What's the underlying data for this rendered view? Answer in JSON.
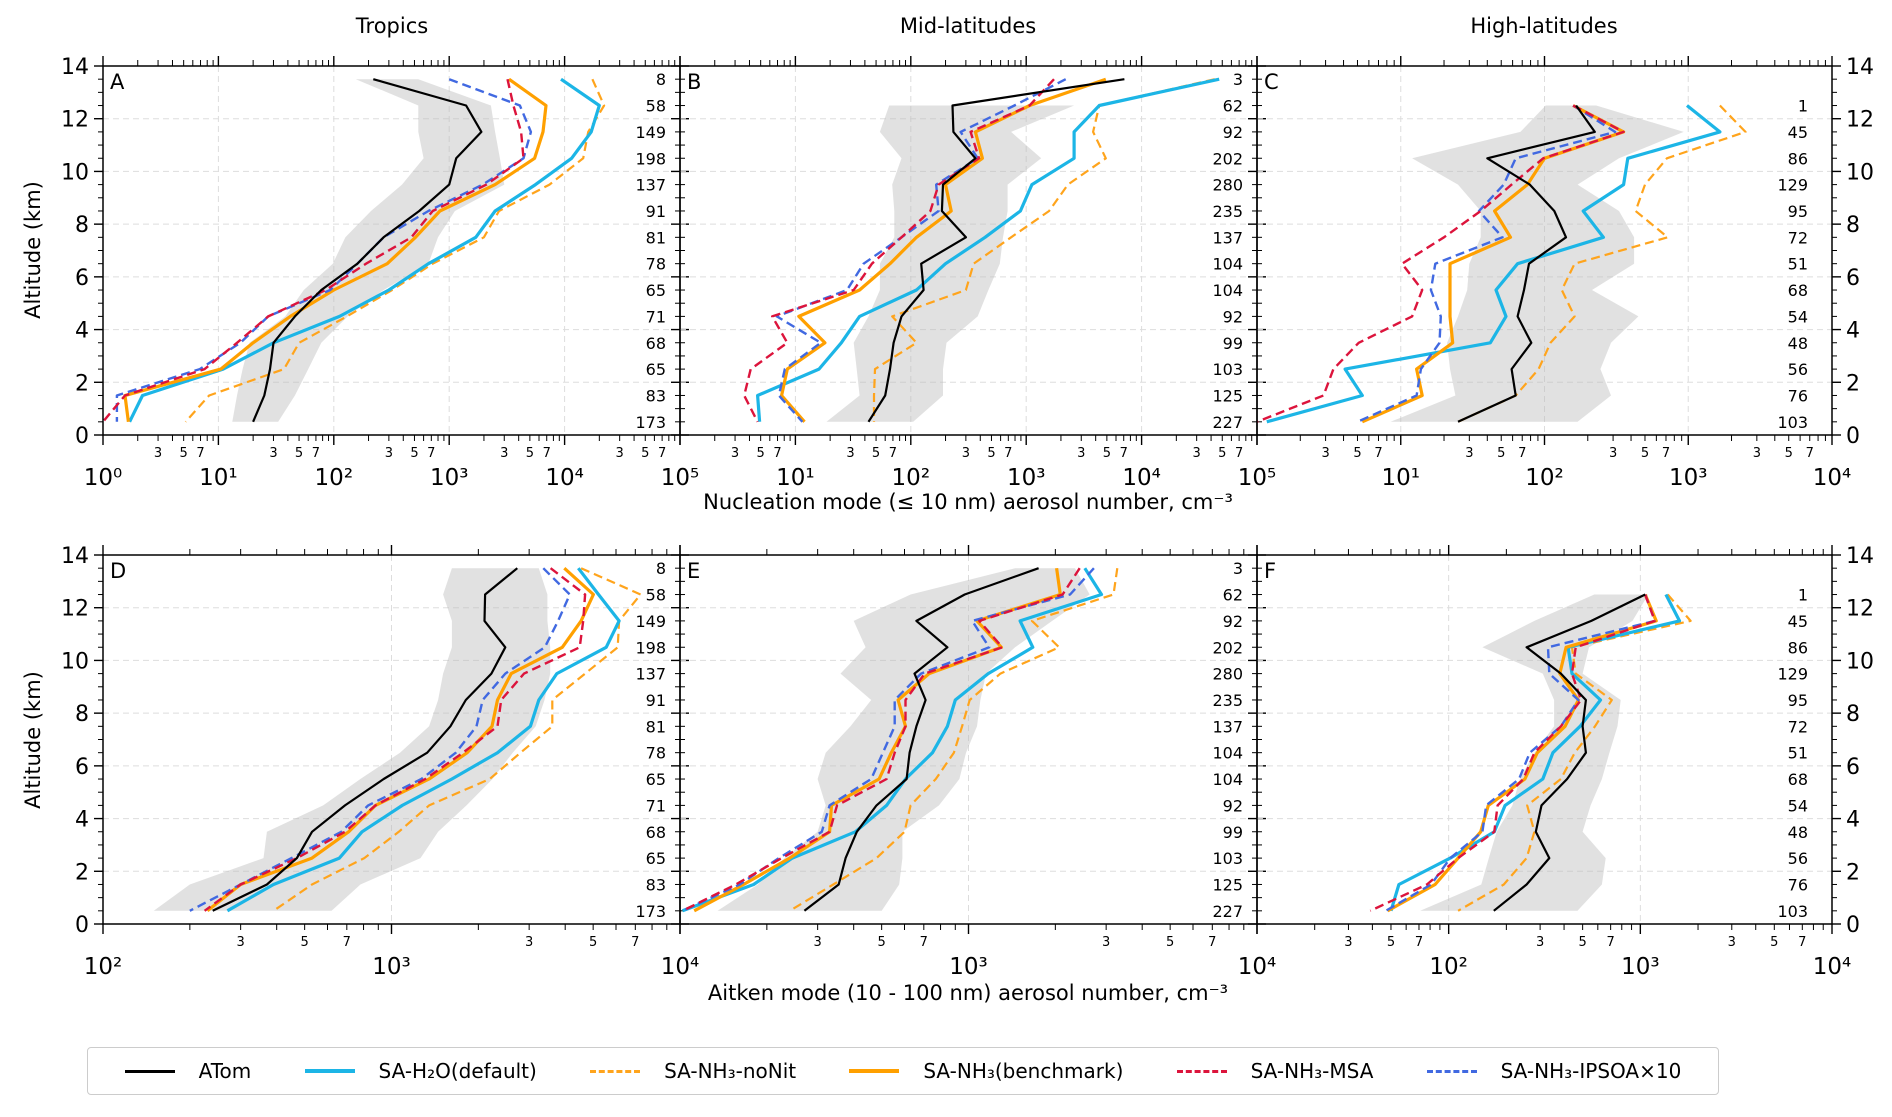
{
  "columns": [
    "Tropics",
    "Mid-latitudes",
    "High-latitudes"
  ],
  "xlabel_top": "Nucleation mode (≤ 10 nm) aerosol number, cm⁻³",
  "xlabel_bottom": "Aitken mode (10 - 100 nm) aerosol number, cm⁻³",
  "ylabel": "Altitude (km)",
  "legend": [
    {
      "key": "atom",
      "label": "ATom",
      "color": "#000000",
      "dash": "solid"
    },
    {
      "key": "h2o",
      "label": "SA-H₂O(default)",
      "color": "#1cb5e6",
      "dash": "solid"
    },
    {
      "key": "nonit",
      "label": "SA-NH₃-noNit",
      "color": "#ffa41c",
      "dash": "dashed"
    },
    {
      "key": "bench",
      "label": "SA-NH₃(benchmark)",
      "color": "#ffa000",
      "dash": "solid"
    },
    {
      "key": "msa",
      "label": "SA-NH₃-MSA",
      "color": "#dc143c",
      "dash": "dashed"
    },
    {
      "key": "ipsoa",
      "label": "SA-NH₃-IPSOA×10",
      "color": "#4169e1",
      "dash": "dashed"
    }
  ],
  "chart_data": [
    {
      "type": "line",
      "panel": "A",
      "column": "Tropics",
      "xscale": "log",
      "xlim": [
        1,
        100000
      ],
      "ylim": [
        0,
        14
      ],
      "ylabel": "Altitude (km)",
      "yticks": [
        0,
        2,
        4,
        6,
        8,
        10,
        12,
        14
      ],
      "grid": true,
      "legend_position": "bottom",
      "altitude": [
        13.5,
        12.5,
        11.5,
        10.5,
        9.5,
        8.5,
        7.5,
        6.5,
        5.5,
        4.5,
        3.5,
        2.5,
        1.5,
        0.5
      ],
      "counts": [
        8,
        58,
        149,
        198,
        137,
        91,
        81,
        78,
        65,
        71,
        68,
        65,
        83,
        173
      ],
      "series": {
        "atom": [
          220,
          1400,
          1900,
          1150,
          1000,
          550,
          270,
          160,
          78,
          46,
          30,
          28,
          25,
          20
        ],
        "h2o": [
          9300,
          20000,
          17000,
          11500,
          5600,
          2500,
          1700,
          660,
          300,
          112,
          30,
          11,
          2.2,
          1.7
        ],
        "nonit": [
          17400,
          22000,
          16000,
          14500,
          7400,
          2700,
          2000,
          720,
          320,
          130,
          50,
          37,
          8.3,
          5.2
        ],
        "bench": [
          3300,
          6900,
          6500,
          5500,
          2500,
          830,
          510,
          290,
          100,
          42,
          20,
          10.5,
          1.55,
          1.66
        ],
        "msa": [
          3200,
          3600,
          4200,
          4400,
          2100,
          720,
          470,
          190,
          85,
          27,
          14.5,
          7.6,
          1.55,
          1.0
        ],
        "ipsoa": [
          1000,
          4100,
          5100,
          4400,
          1950,
          660,
          270,
          160,
          93,
          27,
          15.5,
          6.9,
          1.32,
          1.32
        ]
      },
      "atom_range": [
        [
          155,
          540
        ],
        [
          540,
          2300
        ],
        [
          540,
          2500
        ],
        [
          600,
          2750
        ],
        [
          390,
          3000
        ],
        [
          210,
          1120
        ],
        [
          126,
          800
        ],
        [
          98,
          660
        ],
        [
          55,
          270
        ],
        [
          38,
          132
        ],
        [
          18.6,
          78
        ],
        [
          16.2,
          60
        ],
        [
          14.5,
          46
        ],
        [
          13.2,
          33
        ]
      ]
    },
    {
      "type": "line",
      "panel": "B",
      "column": "Mid-latitudes",
      "xscale": "log",
      "xlim": [
        1,
        100000
      ],
      "ylim": [
        0,
        14
      ],
      "grid": true,
      "altitude": [
        13.5,
        12.5,
        11.5,
        10.5,
        9.5,
        8.5,
        7.5,
        6.5,
        5.5,
        4.5,
        3.5,
        2.5,
        1.5,
        0.5
      ],
      "counts": [
        3,
        62,
        92,
        202,
        280,
        235,
        137,
        104,
        104,
        92,
        99,
        103,
        125,
        227
      ],
      "series": {
        "atom": [
          7100,
          230,
          234,
          363,
          190,
          186,
          300,
          123,
          129,
          83,
          71,
          66,
          60,
          43
        ],
        "h2o": [
          47000,
          4300,
          2600,
          2600,
          1120,
          890,
          440,
          200,
          112,
          36,
          25,
          16,
          4.7,
          4.9
        ],
        "nonit": [
          43000,
          4300,
          3800,
          4900,
          2300,
          1580,
          740,
          350,
          300,
          69,
          112,
          49,
          48,
          48
        ],
        "bench": [
          4900,
          1070,
          363,
          417,
          200,
          224,
          112,
          66,
          36,
          10.7,
          18,
          8.5,
          7.6,
          12
        ],
        "msa": [
          1740,
          1070,
          330,
          390,
          174,
          148,
          83,
          46,
          32,
          6.3,
          8.5,
          4.1,
          3.6,
          4.7
        ],
        "ipsoa": [
          2200,
          790,
          270,
          380,
          166,
          174,
          83,
          39,
          28,
          6.9,
          16.6,
          8.1,
          7.2,
          11.5
        ]
      },
      "atom_range": [
        null,
        [
          65,
          2600
        ],
        [
          54,
          740
        ],
        [
          83,
          1350
        ],
        [
          69,
          690
        ],
        [
          72,
          690
        ],
        [
          72,
          630
        ],
        [
          54,
          590
        ],
        [
          54,
          470
        ],
        [
          43,
          380
        ],
        [
          32,
          204
        ],
        [
          34,
          190
        ],
        [
          36,
          190
        ],
        [
          18.6,
          105
        ]
      ]
    },
    {
      "type": "line",
      "panel": "C",
      "column": "High-latitudes",
      "xscale": "log",
      "xlim": [
        1,
        10000
      ],
      "ylim": [
        0,
        14
      ],
      "grid": true,
      "altitude": [
        13.5,
        12.5,
        11.5,
        10.5,
        9.5,
        8.5,
        7.5,
        6.5,
        5.5,
        4.5,
        3.5,
        2.5,
        1.5,
        0.5
      ],
      "counts": [
        null,
        1,
        45,
        86,
        129,
        95,
        72,
        51,
        68,
        54,
        48,
        56,
        76,
        103
      ],
      "series": {
        "atom": [
          null,
          166,
          224,
          40,
          79,
          117,
          141,
          78,
          72,
          65,
          81,
          59,
          63,
          25
        ],
        "h2o": [
          null,
          980,
          1660,
          380,
          355,
          186,
          257,
          65,
          46,
          54,
          42,
          4.1,
          5.4,
          1.17
        ],
        "nonit": [
          null,
          1660,
          2500,
          710,
          500,
          430,
          720,
          162,
          132,
          162,
          110,
          91,
          63,
          25
        ],
        "bench": [
          null,
          158,
          355,
          100,
          76,
          45,
          58,
          22,
          22,
          22,
          23,
          12.9,
          14.1,
          5.4
        ],
        "msa": [
          null,
          158,
          355,
          98,
          59,
          36,
          20,
          10.2,
          14.1,
          12,
          5.1,
          3.4,
          2.9,
          1.0
        ],
        "ipsoa": [
          null,
          158,
          310,
          63,
          52,
          35,
          51,
          17.4,
          16.2,
          19,
          18.6,
          13.8,
          12.9,
          5.0
        ]
      },
      "atom_range": [
        null,
        [
          102,
          229
        ],
        [
          68,
          930
        ],
        [
          12,
          330
        ],
        [
          25,
          170
        ],
        [
          36,
          330
        ],
        [
          36,
          420
        ],
        [
          30,
          420
        ],
        [
          29,
          214
        ],
        [
          25,
          450
        ],
        [
          21,
          290
        ],
        [
          22,
          245
        ],
        [
          24,
          290
        ],
        [
          8.5,
          170
        ]
      ]
    },
    {
      "type": "line",
      "panel": "D",
      "column": "Tropics",
      "xscale": "log",
      "xlim": [
        100,
        10000
      ],
      "ylim": [
        0,
        14
      ],
      "grid": true,
      "ylabel": "Altitude (km)",
      "altitude": [
        13.5,
        12.5,
        11.5,
        10.5,
        9.5,
        8.5,
        7.5,
        6.5,
        5.5,
        4.5,
        3.5,
        2.5,
        1.5,
        0.5
      ],
      "counts": [
        8,
        58,
        149,
        198,
        137,
        91,
        81,
        78,
        65,
        71,
        68,
        65,
        83,
        173
      ],
      "series": {
        "atom": [
          2730,
          2110,
          2100,
          2480,
          2220,
          1810,
          1600,
          1330,
          940,
          690,
          530,
          470,
          370,
          240
        ],
        "h2o": [
          4440,
          5220,
          6150,
          5550,
          3740,
          3240,
          3030,
          2330,
          1620,
          1090,
          790,
          660,
          390,
          270
        ],
        "nonit": [
          4540,
          7300,
          6150,
          6080,
          4690,
          3610,
          3610,
          2800,
          2190,
          1350,
          1060,
          805,
          530,
          390
        ],
        "bench": [
          3970,
          5010,
          4540,
          3910,
          2600,
          2330,
          2230,
          1830,
          1350,
          880,
          710,
          530,
          300,
          230
        ],
        "msa": [
          3560,
          4690,
          4620,
          4490,
          2880,
          2400,
          2330,
          1770,
          1310,
          880,
          690,
          470,
          300,
          225
        ],
        "ipsoa": [
          3360,
          4150,
          3780,
          3400,
          2480,
          2070,
          1970,
          1670,
          1270,
          830,
          670,
          450,
          300,
          200
        ]
      },
      "atom_range": [
        [
          1620,
          3240
        ],
        [
          1510,
          3470
        ],
        [
          1620,
          3470
        ],
        [
          1620,
          3550
        ],
        [
          1510,
          3550
        ],
        [
          1450,
          3390
        ],
        [
          1350,
          3160
        ],
        [
          1070,
          2630
        ],
        [
          780,
          2240
        ],
        [
          580,
          1820
        ],
        [
          370,
          1450
        ],
        [
          360,
          1260
        ],
        [
          200,
          780
        ],
        [
          150,
          620
        ]
      ]
    },
    {
      "type": "line",
      "panel": "E",
      "column": "Mid-latitudes",
      "xscale": "log",
      "xlim": [
        100,
        10000
      ],
      "ylim": [
        0,
        14
      ],
      "grid": true,
      "altitude": [
        13.5,
        12.5,
        11.5,
        10.5,
        9.5,
        8.5,
        7.5,
        6.5,
        5.5,
        4.5,
        3.5,
        2.5,
        1.5,
        0.5
      ],
      "counts": [
        3,
        62,
        92,
        202,
        280,
        235,
        137,
        104,
        104,
        92,
        99,
        103,
        125,
        227
      ],
      "series": {
        "atom": [
          1750,
          970,
          660,
          845,
          650,
          710,
          660,
          625,
          610,
          480,
          410,
          375,
          355,
          270
        ],
        "h2o": [
          2530,
          2890,
          1510,
          1670,
          1170,
          900,
          845,
          750,
          605,
          520,
          405,
          245,
          180,
          102
        ],
        "nonit": [
          3280,
          3180,
          1660,
          2060,
          1290,
          1010,
          950,
          890,
          770,
          630,
          600,
          480,
          340,
          240
        ],
        "bench": [
          2020,
          2080,
          1070,
          1300,
          730,
          570,
          605,
          540,
          490,
          335,
          330,
          240,
          166,
          112
        ],
        "msa": [
          2430,
          2120,
          1090,
          1310,
          705,
          605,
          605,
          555,
          520,
          350,
          330,
          225,
          156,
          102
        ],
        "ipsoa": [
          2720,
          2250,
          1030,
          1180,
          685,
          555,
          555,
          505,
          460,
          330,
          310,
          220,
          161,
          102
        ]
      },
      "atom_range": [
        [
          1450,
          2340
        ],
        [
          630,
          2630
        ],
        [
          400,
          1950
        ],
        [
          440,
          1450
        ],
        [
          360,
          1150
        ],
        [
          460,
          1100
        ],
        [
          390,
          1070
        ],
        [
          320,
          980
        ],
        [
          300,
          930
        ],
        [
          320,
          790
        ],
        [
          300,
          590
        ],
        [
          230,
          590
        ],
        [
          186,
          575
        ],
        [
          135,
          500
        ]
      ]
    },
    {
      "type": "line",
      "panel": "F",
      "column": "High-latitudes",
      "xscale": "log",
      "xlim": [
        10,
        10000
      ],
      "ylim": [
        0,
        14
      ],
      "grid": true,
      "altitude": [
        13.5,
        12.5,
        11.5,
        10.5,
        9.5,
        8.5,
        7.5,
        6.5,
        5.5,
        4.5,
        3.5,
        2.5,
        1.5,
        0.5
      ],
      "counts": [
        null,
        1,
        45,
        86,
        129,
        95,
        72,
        51,
        68,
        54,
        48,
        56,
        76,
        103
      ],
      "series": {
        "atom": [
          null,
          1060,
          555,
          255,
          385,
          520,
          500,
          520,
          415,
          305,
          285,
          335,
          255,
          172
        ],
        "h2o": [
          null,
          1360,
          1600,
          420,
          440,
          620,
          485,
          350,
          310,
          197,
          173,
          102,
          55,
          50
        ],
        "nonit": [
          null,
          1390,
          1830,
          440,
          460,
          710,
          580,
          455,
          385,
          257,
          280,
          255,
          194,
          112
        ],
        "bench": [
          null,
          1060,
          1210,
          410,
          380,
          475,
          405,
          290,
          250,
          161,
          147,
          112,
          85,
          48
        ],
        "msa": [
          null,
          1060,
          1190,
          460,
          440,
          490,
          385,
          280,
          245,
          180,
          173,
          112,
          77,
          39
        ],
        "ipsoa": [
          null,
          1060,
          1190,
          330,
          335,
          475,
          385,
          265,
          233,
          157,
          150,
          102,
          81,
          47
        ]
      },
      "atom_range": [
        null,
        [
          575,
          1100
        ],
        [
          280,
          910
        ],
        [
          150,
          540
        ],
        [
          310,
          500
        ],
        [
          355,
          790
        ],
        [
          355,
          760
        ],
        [
          280,
          690
        ],
        [
          235,
          630
        ],
        [
          215,
          550
        ],
        [
          178,
          500
        ],
        [
          162,
          660
        ],
        [
          148,
          630
        ],
        [
          71,
          470
        ]
      ]
    }
  ]
}
